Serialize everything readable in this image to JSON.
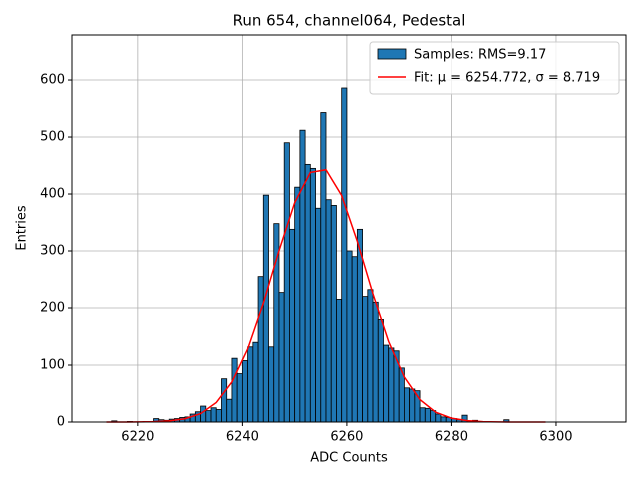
{
  "chart_data": {
    "type": "histogram",
    "title": "Run 654, channel064, Pedestal",
    "xlabel": "ADC Counts",
    "ylabel": "Entries",
    "bins": [
      6214,
      6215,
      6216,
      6217,
      6218,
      6219,
      6220,
      6221,
      6222,
      6223,
      6224,
      6225,
      6226,
      6227,
      6228,
      6229,
      6230,
      6231,
      6232,
      6233,
      6234,
      6235,
      6236,
      6237,
      6238,
      6239,
      6240,
      6241,
      6242,
      6243,
      6244,
      6245,
      6246,
      6247,
      6248,
      6249,
      6250,
      6251,
      6252,
      6253,
      6254,
      6255,
      6256,
      6257,
      6258,
      6259,
      6260,
      6261,
      6262,
      6263,
      6264,
      6265,
      6266,
      6267,
      6268,
      6269,
      6270,
      6271,
      6272,
      6273,
      6274,
      6275,
      6276,
      6277,
      6278,
      6279,
      6280,
      6281,
      6282,
      6283,
      6284,
      6285,
      6286,
      6287,
      6288,
      6289,
      6290,
      6291,
      6292,
      6293,
      6294,
      6295,
      6296,
      6297,
      6298,
      6299
    ],
    "counts": [
      0,
      2,
      0,
      0,
      1,
      0,
      0,
      1,
      0,
      6,
      4,
      3,
      5,
      6,
      8,
      9,
      14,
      18,
      28,
      20,
      25,
      22,
      76,
      40,
      112,
      85,
      108,
      132,
      140,
      255,
      398,
      132,
      348,
      227,
      490,
      338,
      412,
      512,
      452,
      445,
      375,
      543,
      390,
      380,
      215,
      586,
      300,
      290,
      338,
      220,
      232,
      210,
      180,
      135,
      130,
      125,
      95,
      60,
      58,
      55,
      25,
      24,
      20,
      14,
      9,
      8,
      6,
      4,
      12,
      2,
      3,
      1,
      0,
      0,
      0,
      0,
      4,
      0,
      0,
      0,
      0,
      0,
      0,
      0,
      0
    ],
    "hist_name": "Samples: RMS=9.17",
    "hist_color": "#1f77b4",
    "fit": {
      "name": "Fit: μ = 6254.772, σ = 8.719",
      "color": "#ff0000",
      "x": [
        6214,
        6217,
        6220,
        6223,
        6226,
        6229,
        6232,
        6235,
        6238,
        6241,
        6244,
        6247,
        6250,
        6253,
        6256,
        6259,
        6262,
        6265,
        6268,
        6271,
        6274,
        6277,
        6280,
        6283,
        6286,
        6289,
        6292,
        6295,
        6298
      ],
      "values": [
        0,
        0.04,
        0.16,
        0.58,
        1.9,
        5.7,
        14.8,
        34.2,
        70.4,
        128.4,
        208.5,
        300.5,
        384.8,
        437.9,
        442.6,
        397.4,
        316.9,
        224.7,
        141.4,
        79.1,
        39.3,
        17.3,
        6.8,
        2.4,
        0.73,
        0.2,
        0.05,
        0,
        0
      ]
    },
    "xlim": [
      6207.4,
      6313.4
    ],
    "ylim": [
      0,
      679
    ],
    "xticks": [
      6220,
      6240,
      6260,
      6280,
      6300
    ],
    "yticks": [
      0,
      100,
      200,
      300,
      400,
      500,
      600
    ],
    "grid": true,
    "legend": "upper right"
  }
}
